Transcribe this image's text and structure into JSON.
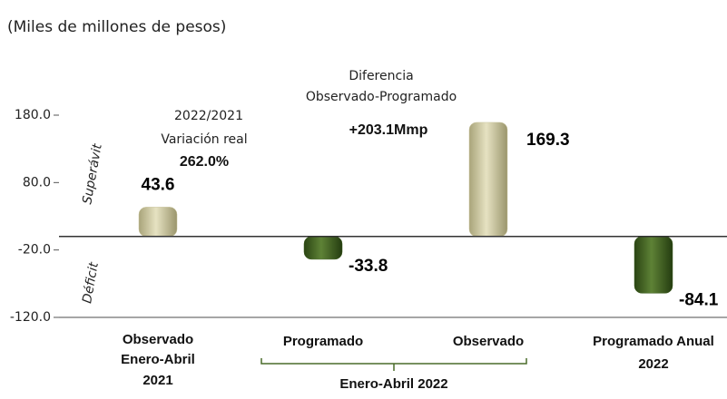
{
  "chart_data": {
    "type": "bar",
    "subtitle": "(Miles de millones de pesos)",
    "categories": [
      [
        "Observado",
        "Enero-Abril",
        "2021"
      ],
      [
        "Programado"
      ],
      [
        "Observado"
      ],
      [
        "Programado Anual",
        "2022"
      ]
    ],
    "group_label": "Enero-Abril 2022",
    "values": [
      43.6,
      -33.8,
      169.3,
      -84.1
    ],
    "colors": [
      "#c9c49c",
      "#3f5f22",
      "#c9c49c",
      "#3f5f22"
    ],
    "ylim": [
      -120,
      180
    ],
    "yticks": [
      {
        "value": 180,
        "label": "180.0"
      },
      {
        "value": 80,
        "label": "80.0"
      },
      {
        "value": -20,
        "label": "-20.0"
      },
      {
        "value": -120,
        "label": "-120.0"
      }
    ],
    "grid": false,
    "annotations": {
      "variation": [
        "2022/2021",
        "Variación real",
        "262.0%"
      ],
      "difference": [
        "Diferencia",
        "Observado-Programado",
        "+203.1Mmp"
      ],
      "surplus": "Superávit",
      "deficit": "Déficit"
    }
  }
}
